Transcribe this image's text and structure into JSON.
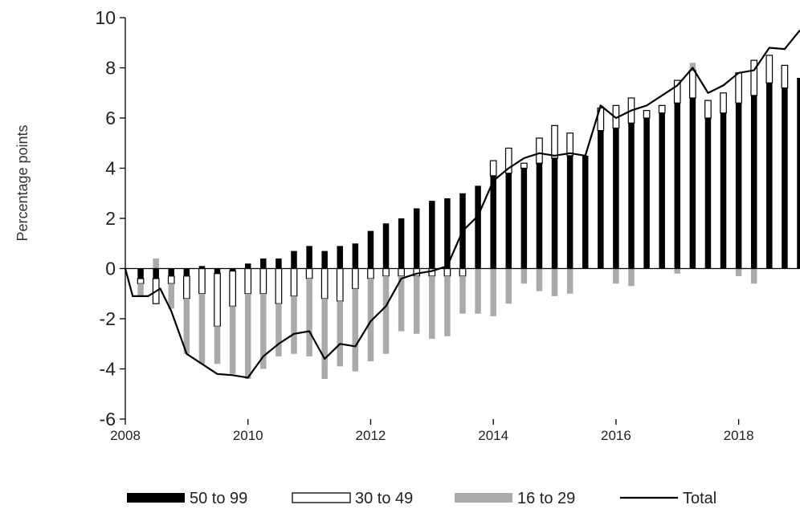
{
  "chart_data": {
    "type": "bar",
    "ylabel": "Percentage points",
    "ylim": [
      -6,
      10
    ],
    "yticks": [
      "-6",
      "-4",
      "-2",
      "0",
      "2",
      "4",
      "6",
      "8",
      "10"
    ],
    "xticks": [
      "2008",
      "2010",
      "2012",
      "2014",
      "2016",
      "2018"
    ],
    "x_start": 2008.0,
    "x_end": 2019.0,
    "legend_position": "bottom",
    "x": [
      2008.25,
      2008.5,
      2008.75,
      2009.0,
      2009.25,
      2009.5,
      2009.75,
      2010.0,
      2010.25,
      2010.5,
      2010.75,
      2011.0,
      2011.25,
      2011.5,
      2011.75,
      2012.0,
      2012.25,
      2012.5,
      2012.75,
      2013.0,
      2013.25,
      2013.5,
      2013.75,
      2014.0,
      2014.25,
      2014.5,
      2014.75,
      2015.0,
      2015.25,
      2015.5,
      2015.75,
      2016.0,
      2016.25,
      2016.5,
      2016.75,
      2017.0,
      2017.25,
      2017.5,
      2017.75,
      2018.0,
      2018.25,
      2018.5,
      2018.75,
      2019.0
    ],
    "series": [
      {
        "name": "50 to 99",
        "color": "#000000",
        "values": [
          -0.4,
          -0.4,
          -0.3,
          -0.3,
          0.1,
          -0.2,
          -0.1,
          0.2,
          0.4,
          0.4,
          0.7,
          0.9,
          0.7,
          0.9,
          1.0,
          1.5,
          1.8,
          2.0,
          2.4,
          2.7,
          2.8,
          3.0,
          3.3,
          3.7,
          3.8,
          4.0,
          4.2,
          4.4,
          4.5,
          4.5,
          5.5,
          5.6,
          5.8,
          6.0,
          6.2,
          6.6,
          6.8,
          6.0,
          6.2,
          6.6,
          6.9,
          7.4,
          7.2,
          7.6
        ]
      },
      {
        "name": "30 to 49",
        "color": "#ffffff",
        "values": [
          -0.2,
          -1.0,
          -0.3,
          -0.9,
          -1.0,
          -2.1,
          -1.4,
          -1.0,
          -1.0,
          -1.4,
          -1.1,
          -0.4,
          -1.2,
          -1.3,
          -0.8,
          -0.4,
          -0.3,
          -0.3,
          -0.3,
          -0.3,
          -0.3,
          -0.3,
          0.0,
          0.6,
          1.0,
          0.2,
          1.0,
          1.3,
          0.9,
          0.0,
          0.9,
          0.9,
          1.0,
          0.3,
          0.3,
          0.9,
          1.1,
          0.7,
          0.8,
          1.2,
          1.4,
          1.1,
          0.9,
          0.0
        ]
      },
      {
        "name": "16 to 29",
        "color": "#aaaaaa",
        "values": [
          -0.5,
          0.4,
          -1.0,
          -2.2,
          -2.8,
          -1.5,
          -2.7,
          -3.4,
          -3.0,
          -2.1,
          -2.3,
          -3.1,
          -3.2,
          -2.6,
          -3.3,
          -3.3,
          -3.1,
          -2.2,
          -2.3,
          -2.5,
          -2.4,
          -1.5,
          -1.8,
          -1.9,
          -1.4,
          -0.6,
          -0.9,
          -1.1,
          -1.0,
          0.0,
          0.0,
          -0.6,
          -0.7,
          0.0,
          0.0,
          -0.2,
          0.3,
          0.0,
          0.0,
          -0.3,
          -0.6,
          0.0,
          0.0,
          0.0
        ]
      },
      {
        "name": "Total",
        "color": "#000000",
        "type": "line",
        "x": [
          2008.0,
          2008.12,
          2008.37,
          2008.57,
          2008.75,
          2009.0,
          2009.25,
          2009.5,
          2009.75,
          2010.0,
          2010.25,
          2010.5,
          2010.75,
          2011.0,
          2011.25,
          2011.5,
          2011.75,
          2012.0,
          2012.25,
          2012.5,
          2012.75,
          2013.0,
          2013.25,
          2013.5,
          2013.75,
          2014.0,
          2014.25,
          2014.5,
          2014.75,
          2015.0,
          2015.25,
          2015.5,
          2015.75,
          2016.0,
          2016.25,
          2016.5,
          2016.75,
          2017.0,
          2017.25,
          2017.5,
          2017.75,
          2018.0,
          2018.25,
          2018.5,
          2018.75,
          2019.0
        ],
        "values": [
          0.0,
          -1.1,
          -1.1,
          -0.8,
          -1.7,
          -3.4,
          -3.8,
          -4.2,
          -4.25,
          -4.35,
          -3.5,
          -3.0,
          -2.6,
          -2.5,
          -3.6,
          -3.0,
          -3.1,
          -2.1,
          -1.5,
          -0.4,
          -0.2,
          -0.1,
          0.1,
          1.5,
          2.1,
          3.5,
          4.0,
          4.4,
          4.6,
          4.5,
          4.6,
          4.5,
          6.5,
          6.0,
          6.3,
          6.5,
          6.9,
          7.3,
          8.0,
          7.0,
          7.3,
          7.8,
          7.9,
          8.8,
          8.75,
          9.5
        ]
      }
    ]
  }
}
